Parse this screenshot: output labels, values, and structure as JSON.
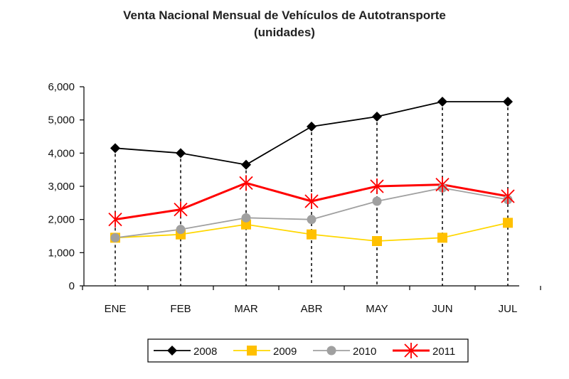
{
  "chart_data": {
    "type": "line",
    "title": "Venta Nacional Mensual de Vehículos de Autotransporte",
    "subtitle": "(unidades)",
    "xlabel": "",
    "ylabel": "",
    "categories": [
      "ENE",
      "FEB",
      "MAR",
      "ABR",
      "MAY",
      "JUN",
      "JUL"
    ],
    "ylim": [
      0,
      6000
    ],
    "yticks": [
      0,
      1000,
      2000,
      3000,
      4000,
      5000,
      6000
    ],
    "ytick_labels": [
      "0",
      "1,000",
      "2,000",
      "3,000",
      "4,000",
      "5,000",
      "6,000"
    ],
    "grid": false,
    "legend_position": "bottom",
    "series": [
      {
        "name": "2008",
        "color": "#000000",
        "marker": "diamond",
        "values": [
          4150,
          4000,
          3650,
          4800,
          5100,
          5550,
          5550
        ]
      },
      {
        "name": "2009",
        "color": "#FFC000",
        "line_color": "#FFD700",
        "marker": "square",
        "values": [
          1450,
          1550,
          1850,
          1550,
          1350,
          1450,
          1900
        ]
      },
      {
        "name": "2010",
        "color": "#A0A0A0",
        "marker": "circle",
        "values": [
          1450,
          1700,
          2050,
          2000,
          2550,
          2950,
          2600
        ]
      },
      {
        "name": "2011",
        "color": "#FF0000",
        "marker": "star",
        "values": [
          2000,
          2300,
          3100,
          2550,
          3000,
          3050,
          2700
        ]
      }
    ]
  }
}
